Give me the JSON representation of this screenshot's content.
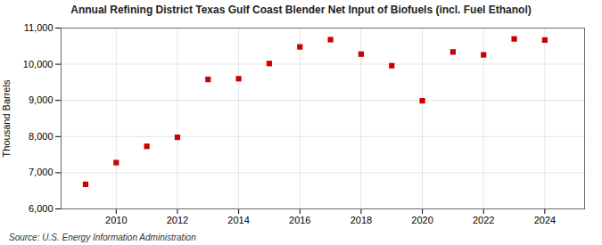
{
  "chart_data": {
    "type": "scatter",
    "title": "Annual Refining District Texas Gulf Coast Blender Net Input of Biofuels (incl. Fuel Ethanol)",
    "ylabel": "Thousand Barrels",
    "source": "Source: U.S. Energy Information Administration",
    "x": [
      2009,
      2010,
      2011,
      2012,
      2013,
      2014,
      2015,
      2016,
      2017,
      2018,
      2019,
      2020,
      2021,
      2022,
      2023,
      2024
    ],
    "values": [
      6680,
      7280,
      7730,
      7980,
      9580,
      9600,
      10020,
      10480,
      10680,
      10280,
      9960,
      8990,
      10340,
      10260,
      10700,
      10670
    ],
    "color": "#cc0000",
    "marker": "square",
    "xlim": [
      2008.2,
      2025.3
    ],
    "xticks": [
      2010,
      2012,
      2014,
      2016,
      2018,
      2020,
      2022,
      2024
    ],
    "ylim": [
      6000,
      11000
    ],
    "yticks": [
      {
        "value": 6000,
        "label": "6,000"
      },
      {
        "value": 7000,
        "label": "7,000"
      },
      {
        "value": 8000,
        "label": "8,000"
      },
      {
        "value": 9000,
        "label": "9,000"
      },
      {
        "value": 10000,
        "label": "10,000"
      },
      {
        "value": 11000,
        "label": "11,000"
      }
    ],
    "grid": true
  }
}
